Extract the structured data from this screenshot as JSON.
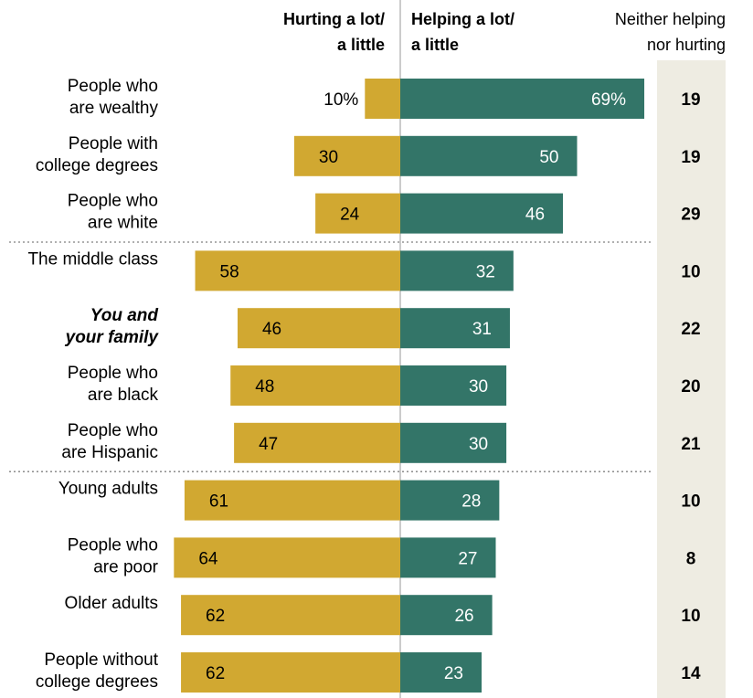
{
  "colors": {
    "hurting": "#D1A831",
    "helping": "#337568",
    "neither_bg": "#EEECE2",
    "divider": "#808080"
  },
  "headers": {
    "hurting": [
      "Hurting a lot/",
      "a little"
    ],
    "helping": [
      "Helping a lot/",
      "a little"
    ],
    "neither": [
      "Neither helping",
      "nor hurting"
    ]
  },
  "chart_data": {
    "type": "bar",
    "orientation": "diverging-horizontal",
    "categories": [
      [
        "People who",
        "are wealthy"
      ],
      [
        "People with",
        "college degrees"
      ],
      [
        "People who",
        "are white"
      ],
      [
        "The middle class"
      ],
      [
        "You and",
        "your family"
      ],
      [
        "People who",
        "are black"
      ],
      [
        "People who",
        "are Hispanic"
      ],
      [
        "Young adults"
      ],
      [
        "People who",
        "are poor"
      ],
      [
        "Older adults"
      ],
      [
        "People without",
        "college degrees"
      ]
    ],
    "emphasized_category_index": 4,
    "group_breaks_after": [
      2,
      6
    ],
    "series": [
      {
        "name": "Hurting a lot/ a little",
        "values": [
          10,
          30,
          24,
          58,
          46,
          48,
          47,
          61,
          64,
          62,
          62
        ]
      },
      {
        "name": "Helping a lot/ a little",
        "values": [
          69,
          50,
          46,
          32,
          31,
          30,
          30,
          28,
          27,
          26,
          23
        ]
      },
      {
        "name": "Neither helping nor hurting",
        "values": [
          19,
          19,
          29,
          10,
          22,
          20,
          21,
          10,
          8,
          10,
          14
        ]
      }
    ],
    "value_labels": {
      "hurting": [
        "10%",
        "30",
        "24",
        "58",
        "46",
        "48",
        "47",
        "61",
        "64",
        "62",
        "62"
      ],
      "helping": [
        "69%",
        "50",
        "46",
        "32",
        "31",
        "30",
        "30",
        "28",
        "27",
        "26",
        "23"
      ],
      "neither": [
        "19",
        "19",
        "29",
        "10",
        "22",
        "20",
        "21",
        "10",
        "8",
        "10",
        "14"
      ]
    },
    "title": "",
    "xlabel": "",
    "ylabel": "",
    "grid": false,
    "legend": "column headers at top"
  }
}
